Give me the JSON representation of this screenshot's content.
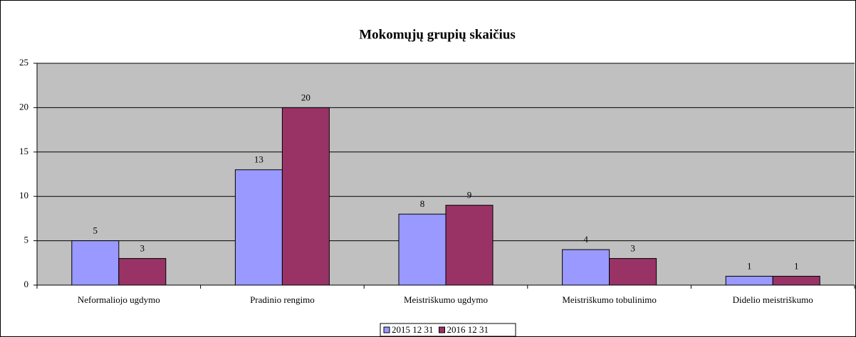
{
  "chart_data": {
    "type": "bar",
    "title": "Mokomųjų grupių skaičius",
    "categories": [
      "Neformaliojo ugdymo",
      "Pradinio rengimo",
      "Meistriškumo ugdymo",
      "Meistriškumo tobulinimo",
      "Didelio meistriškumo"
    ],
    "series": [
      {
        "name": "2015 12 31",
        "color": "#9999ff",
        "values": [
          5,
          13,
          8,
          4,
          1
        ]
      },
      {
        "name": "2016 12 31",
        "color": "#993366",
        "values": [
          3,
          20,
          9,
          3,
          1
        ]
      }
    ],
    "ylim": [
      0,
      25
    ],
    "yticks": [
      0,
      5,
      10,
      15,
      20,
      25
    ],
    "grid": true,
    "legend": "bottom",
    "data_labels": true
  }
}
